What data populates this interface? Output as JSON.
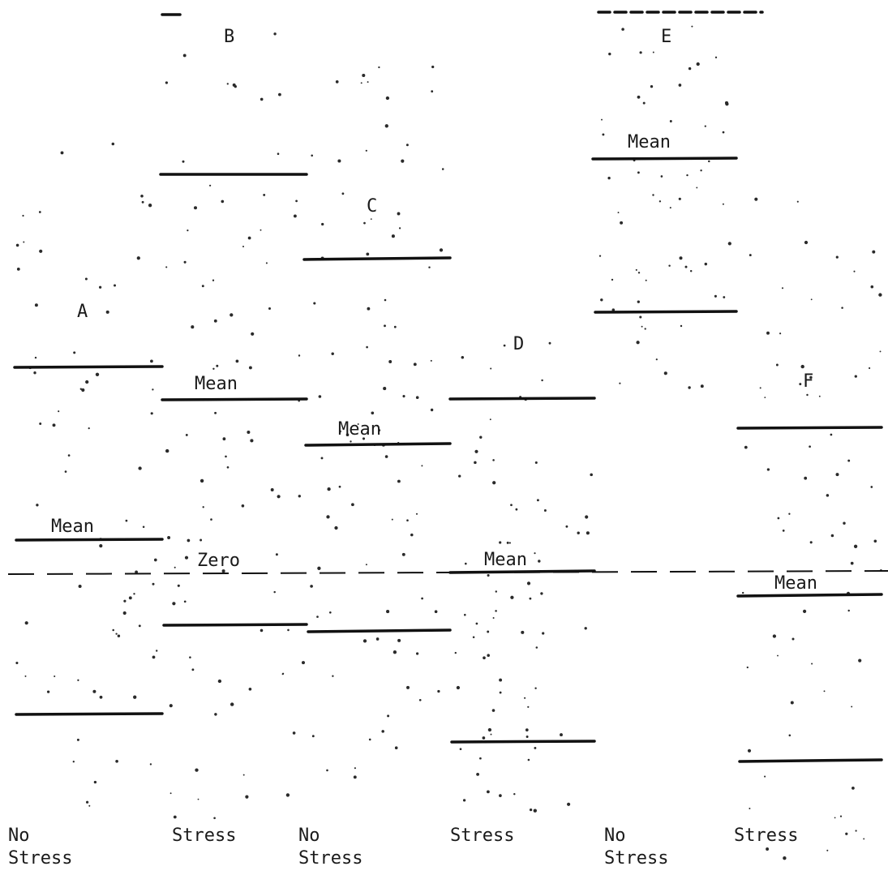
{
  "figure": {
    "zero_label": "Zero",
    "mean_label": "Mean",
    "panels": [
      {
        "letter": "A",
        "mean_label": "Mean",
        "column_label": [
          "No",
          "Stress"
        ]
      },
      {
        "letter": "B",
        "mean_label": "Mean",
        "column_label": [
          "Stress"
        ]
      },
      {
        "letter": "C",
        "mean_label": "Mean",
        "column_label": [
          "No",
          "Stress"
        ]
      },
      {
        "letter": "D",
        "mean_label": "Mean",
        "column_label": [
          "Stress"
        ]
      },
      {
        "letter": "E",
        "mean_label": "Mean",
        "column_label": [
          "No",
          "Stress"
        ]
      },
      {
        "letter": "F",
        "mean_label": "Mean",
        "column_label": [
          "Stress"
        ]
      }
    ]
  }
}
